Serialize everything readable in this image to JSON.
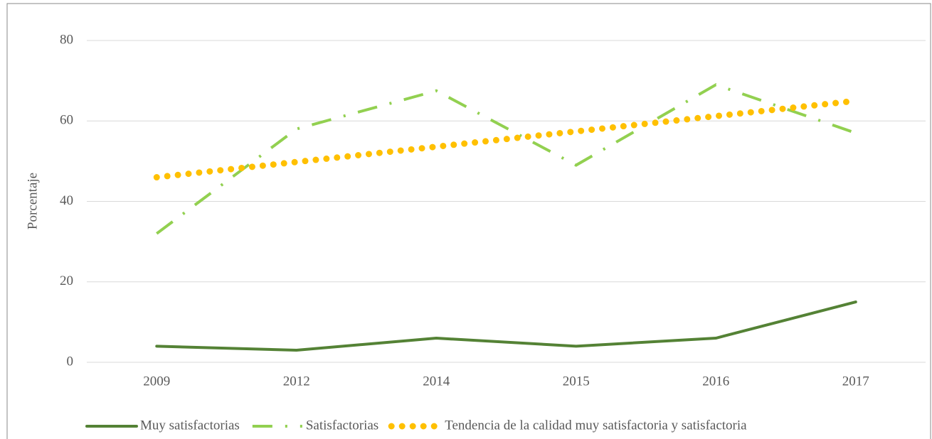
{
  "chart_data": {
    "type": "line",
    "categories": [
      "2009",
      "2012",
      "2014",
      "2015",
      "2016",
      "2017"
    ],
    "y_label": "Porcentaje",
    "series": [
      {
        "name": "Muy satisfactorias",
        "color": "#548235",
        "style": "solid",
        "values": [
          4,
          3,
          6,
          4,
          6,
          15
        ]
      },
      {
        "name": "Satisfactorias",
        "color": "#92d050",
        "style": "dashdot",
        "values": [
          32,
          58,
          67.5,
          49,
          69,
          57
        ]
      },
      {
        "name": "Tendencia de la calidad muy satisfactoria y satisfactoria",
        "color": "#ffc000",
        "style": "dotted",
        "values": [
          46,
          49.8,
          53.6,
          57.4,
          61.2,
          65
        ]
      }
    ],
    "ylim": [
      0,
      80
    ],
    "yticks": [
      0,
      20,
      40,
      60,
      80
    ],
    "grid": true,
    "legend": "bottom"
  }
}
